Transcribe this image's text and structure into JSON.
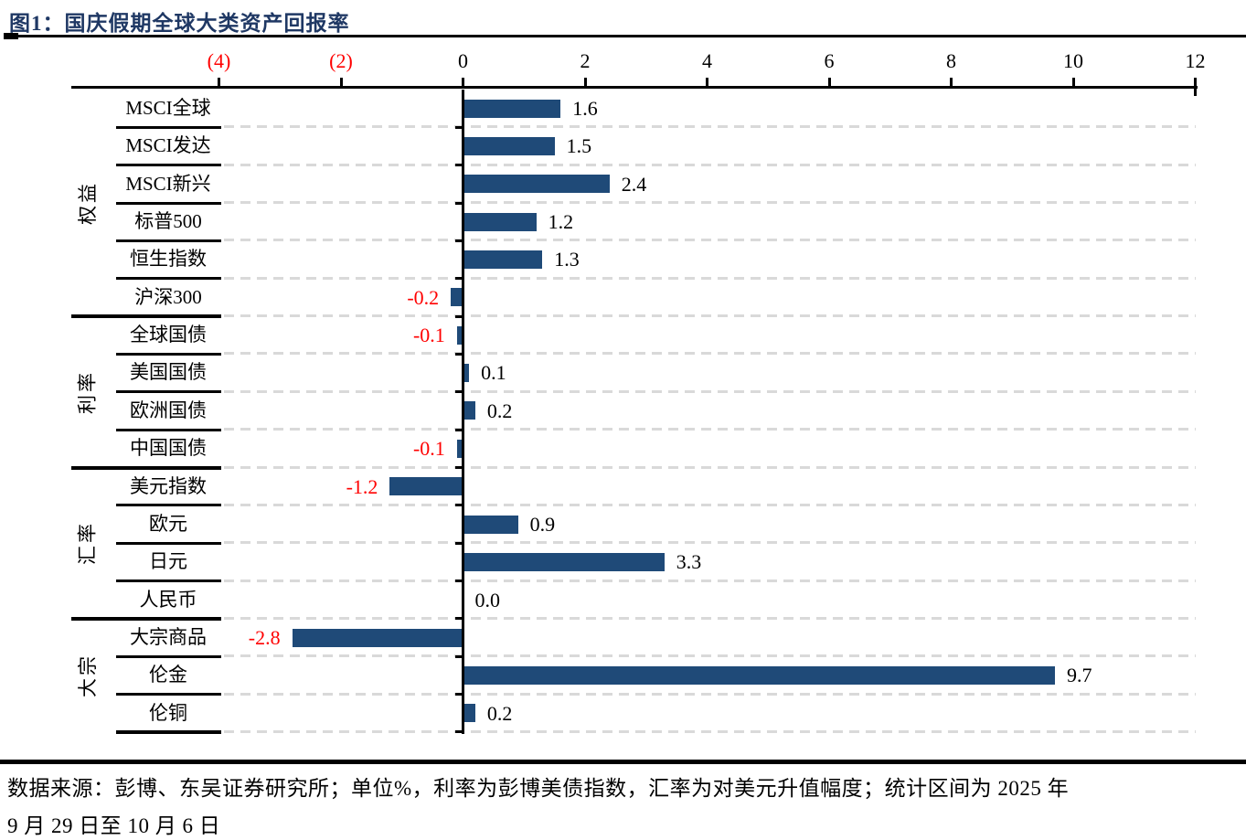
{
  "header": {
    "title": "图1：国庆假期全球大类资产回报率"
  },
  "chart_data": {
    "type": "bar",
    "orientation": "horizontal",
    "title": "图1：国庆假期全球大类资产回报率",
    "unit": "%",
    "xlim": [
      -4,
      12
    ],
    "grid": "dashed-horizontal-row-separators",
    "x_ticks": [
      {
        "value": -4,
        "label": "(4)",
        "negative": true
      },
      {
        "value": -2,
        "label": "(2)",
        "negative": true
      },
      {
        "value": 0,
        "label": "0",
        "negative": false
      },
      {
        "value": 2,
        "label": "2",
        "negative": false
      },
      {
        "value": 4,
        "label": "4",
        "negative": false
      },
      {
        "value": 6,
        "label": "6",
        "negative": false
      },
      {
        "value": 8,
        "label": "8",
        "negative": false
      },
      {
        "value": 10,
        "label": "10",
        "negative": false
      },
      {
        "value": 12,
        "label": "12",
        "negative": false
      }
    ],
    "groups": [
      {
        "name": "权益",
        "items": [
          {
            "label": "MSCI全球",
            "value": 1.6,
            "value_label": "1.6"
          },
          {
            "label": "MSCI发达",
            "value": 1.5,
            "value_label": "1.5"
          },
          {
            "label": "MSCI新兴",
            "value": 2.4,
            "value_label": "2.4"
          },
          {
            "label": "标普500",
            "value": 1.2,
            "value_label": "1.2"
          },
          {
            "label": "恒生指数",
            "value": 1.3,
            "value_label": "1.3"
          },
          {
            "label": "沪深300",
            "value": -0.2,
            "value_label": "-0.2"
          }
        ]
      },
      {
        "name": "利率",
        "items": [
          {
            "label": "全球国债",
            "value": -0.1,
            "value_label": "-0.1"
          },
          {
            "label": "美国国债",
            "value": 0.1,
            "value_label": "0.1"
          },
          {
            "label": "欧洲国债",
            "value": 0.2,
            "value_label": "0.2"
          },
          {
            "label": "中国国债",
            "value": -0.1,
            "value_label": "-0.1"
          }
        ]
      },
      {
        "name": "汇率",
        "items": [
          {
            "label": "美元指数",
            "value": -1.2,
            "value_label": "-1.2"
          },
          {
            "label": "欧元",
            "value": 0.9,
            "value_label": "0.9"
          },
          {
            "label": "日元",
            "value": 3.3,
            "value_label": "3.3"
          },
          {
            "label": "人民币",
            "value": 0.0,
            "value_label": "0.0"
          }
        ]
      },
      {
        "name": "大宗",
        "items": [
          {
            "label": "大宗商品",
            "value": -2.8,
            "value_label": "-2.8"
          },
          {
            "label": "伦金",
            "value": 9.7,
            "value_label": "9.7"
          },
          {
            "label": "伦铜",
            "value": 0.2,
            "value_label": "0.2"
          }
        ]
      }
    ],
    "colors": {
      "bar": "#1F4A78",
      "title": "#1F3864",
      "negative_text": "#FF0000",
      "gridline": "#D9D9D9",
      "axis": "#000000"
    }
  },
  "footer": {
    "line1": "数据来源：彭博、东吴证券研究所；单位%，利率为彭博美债指数，汇率为对美元升值幅度；统计区间为 2025 年",
    "line2": "9 月 29 日至 10 月 6 日"
  }
}
